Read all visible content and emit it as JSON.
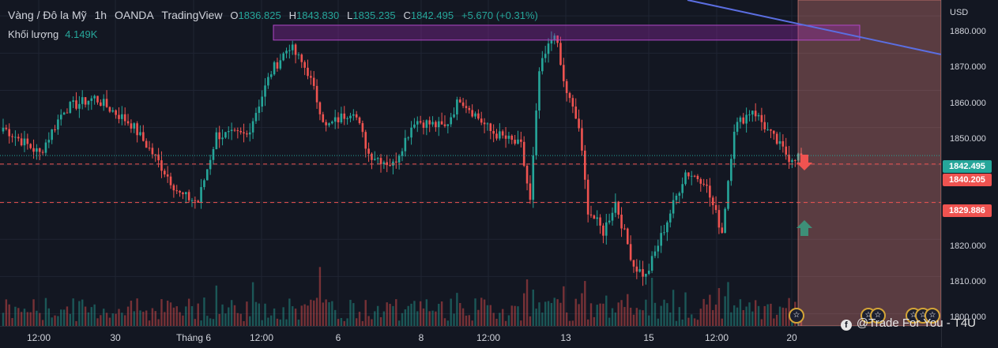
{
  "header": {
    "symbol": "Vàng / Đô la Mỹ",
    "interval": "1h",
    "broker": "OANDA",
    "platform": "TradingView",
    "ohlc": {
      "o_label": "O",
      "o": "1836.825",
      "h_label": "H",
      "h": "1843.830",
      "l_label": "L",
      "l": "1835.235",
      "c_label": "C",
      "c": "1842.495",
      "change": "+5.670 (+0.31%)"
    }
  },
  "volume": {
    "label": "Khối lượng",
    "value": "4.149K"
  },
  "axis": {
    "currency": "USD",
    "y_ticks": [
      "1880.000",
      "1870.000",
      "1860.000",
      "1850.000",
      "1820.000",
      "1810.000",
      "1800.000"
    ],
    "x_ticks": [
      "12:00",
      "30",
      "Tháng 6",
      "12:00",
      "6",
      "8",
      "12:00",
      "13",
      "15",
      "12:00",
      "20"
    ]
  },
  "price_tags": {
    "current": "1842.495",
    "level_1": "1840.205",
    "level_2": "1829.886"
  },
  "colors": {
    "up": "#26a69a",
    "down": "#ef5350",
    "zone": "#9c27b0",
    "trendline": "#5b6ee1",
    "forecast_box": "#f28b82",
    "arrow_down": "#ef5350",
    "arrow_up": "#3d8f78"
  },
  "watermark": {
    "icon": "facebook-icon",
    "text": "@Trade For You - T4U"
  },
  "chart_data": {
    "type": "candlestick",
    "title": "Vàng / Đô la Mỹ, 1h, OANDA",
    "ylim": [
      1798,
      1883
    ],
    "y_unit": "USD",
    "horizontal_levels": [
      1840.205,
      1829.886
    ],
    "current_price": 1842.495,
    "resistance_zone": [
      1873.5,
      1877.5
    ],
    "close_path": [
      {
        "i": 0,
        "price": 1850
      },
      {
        "i": 12,
        "price": 1843
      },
      {
        "i": 20,
        "price": 1855
      },
      {
        "i": 30,
        "price": 1858
      },
      {
        "i": 42,
        "price": 1851
      },
      {
        "i": 50,
        "price": 1842
      },
      {
        "i": 58,
        "price": 1832
      },
      {
        "i": 64,
        "price": 1830
      },
      {
        "i": 70,
        "price": 1848
      },
      {
        "i": 80,
        "price": 1848
      },
      {
        "i": 88,
        "price": 1865
      },
      {
        "i": 94,
        "price": 1872
      },
      {
        "i": 100,
        "price": 1865
      },
      {
        "i": 106,
        "price": 1850
      },
      {
        "i": 115,
        "price": 1855
      },
      {
        "i": 120,
        "price": 1843
      },
      {
        "i": 128,
        "price": 1840
      },
      {
        "i": 135,
        "price": 1852
      },
      {
        "i": 145,
        "price": 1850
      },
      {
        "i": 150,
        "price": 1858
      },
      {
        "i": 160,
        "price": 1849
      },
      {
        "i": 170,
        "price": 1845
      },
      {
        "i": 173,
        "price": 1830
      },
      {
        "i": 176,
        "price": 1865
      },
      {
        "i": 181,
        "price": 1876
      },
      {
        "i": 184,
        "price": 1862
      },
      {
        "i": 189,
        "price": 1850
      },
      {
        "i": 192,
        "price": 1828
      },
      {
        "i": 197,
        "price": 1822
      },
      {
        "i": 201,
        "price": 1830
      },
      {
        "i": 207,
        "price": 1813
      },
      {
        "i": 211,
        "price": 1810
      },
      {
        "i": 218,
        "price": 1825
      },
      {
        "i": 224,
        "price": 1838
      },
      {
        "i": 230,
        "price": 1836
      },
      {
        "i": 236,
        "price": 1822
      },
      {
        "i": 240,
        "price": 1850
      },
      {
        "i": 246,
        "price": 1855
      },
      {
        "i": 252,
        "price": 1848
      },
      {
        "i": 258,
        "price": 1842
      },
      {
        "i": 262,
        "price": 1842.5
      }
    ]
  }
}
